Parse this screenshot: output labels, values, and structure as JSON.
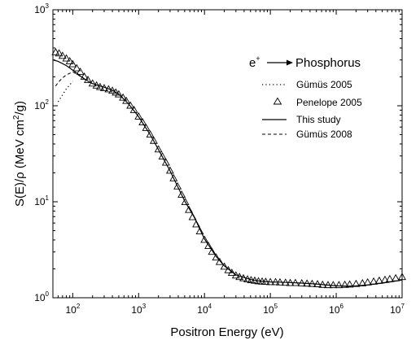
{
  "chart_data": {
    "type": "line",
    "xlabel": "Positron Energy (eV)",
    "ylabel_parts": {
      "pre": "S(E)/",
      "rho": "ρ",
      "mid": " (MeV cm",
      "sup": "2",
      "post": "/g)"
    },
    "x_scale": "log",
    "y_scale": "log",
    "xlim": [
      50,
      10000000
    ],
    "ylim": [
      1,
      1000
    ],
    "x_tick_labels": [
      {
        "value": 100,
        "base": "10",
        "exp": "2"
      },
      {
        "value": 1000,
        "base": "10",
        "exp": "3"
      },
      {
        "value": 10000,
        "base": "10",
        "exp": "4"
      },
      {
        "value": 100000,
        "base": "10",
        "exp": "5"
      },
      {
        "value": 1000000,
        "base": "10",
        "exp": "6"
      },
      {
        "value": 10000000,
        "base": "10",
        "exp": "7"
      }
    ],
    "y_tick_labels": [
      {
        "value": 1,
        "base": "10",
        "exp": "0"
      },
      {
        "value": 10,
        "base": "10",
        "exp": "1"
      },
      {
        "value": 100,
        "base": "10",
        "exp": "2"
      },
      {
        "value": 1000,
        "base": "10",
        "exp": "3"
      }
    ],
    "annotation": {
      "lhs": "e",
      "lhs_sup": "+",
      "rhs": "Phosphorus"
    },
    "legend_placement": "right",
    "grid": false,
    "series": [
      {
        "name": "Gümüs 2005",
        "style": "dotted",
        "x": [
          60,
          70,
          80,
          100
        ],
        "y": [
          110,
          130,
          150,
          180
        ]
      },
      {
        "name": "Penelope 2005",
        "style": "triangle-markers",
        "x": [
          55,
          62,
          70,
          80,
          90,
          100,
          115,
          130,
          150,
          170,
          200,
          230,
          260,
          300,
          350,
          400,
          450,
          500,
          580,
          650,
          750,
          850,
          1000,
          1150,
          1300,
          1500,
          1700,
          2000,
          2300,
          2600,
          3000,
          3400,
          3900,
          4500,
          5100,
          5800,
          6600,
          7500,
          8500,
          10000,
          11500,
          13000,
          15000,
          17000,
          20000,
          23000,
          26000,
          30000,
          34000,
          39000,
          45000,
          51000,
          58000,
          66000,
          75000,
          85000,
          100000,
          120000,
          140000,
          170000,
          200000,
          240000,
          300000,
          360000,
          430000,
          520000,
          620000,
          750000,
          900000,
          1100000,
          1350000,
          1600000,
          2000000,
          2500000,
          3000000,
          3700000,
          4500000,
          5500000,
          6500000,
          8000000,
          10000000
        ],
        "y": [
          360,
          350,
          330,
          310,
          290,
          270,
          245,
          225,
          200,
          185,
          170,
          162,
          156,
          152,
          148,
          143,
          137,
          131,
          121,
          112,
          100,
          90,
          77,
          67,
          58.5,
          50,
          43,
          35,
          29.5,
          25.5,
          21,
          17.5,
          14.4,
          11.8,
          9.9,
          8.2,
          6.9,
          5.8,
          4.9,
          4.0,
          3.45,
          3.0,
          2.62,
          2.35,
          2.1,
          1.93,
          1.81,
          1.7,
          1.64,
          1.59,
          1.55,
          1.52,
          1.5,
          1.48,
          1.47,
          1.46,
          1.45,
          1.45,
          1.44,
          1.43,
          1.42,
          1.42,
          1.41,
          1.4,
          1.39,
          1.38,
          1.36,
          1.35,
          1.35,
          1.35,
          1.36,
          1.37,
          1.39,
          1.41,
          1.44,
          1.47,
          1.5,
          1.53,
          1.56,
          1.59,
          1.64
        ]
      },
      {
        "name": "This study",
        "style": "solid",
        "x": [
          50,
          60,
          70,
          80,
          100,
          130,
          160,
          200,
          250,
          300,
          400,
          500,
          700,
          1000,
          1500,
          2000,
          3000,
          5000,
          7000,
          10000,
          15000,
          20000,
          30000,
          50000,
          70000,
          100000,
          150000,
          200000,
          300000,
          500000,
          700000,
          1000000,
          1500000,
          2000000,
          3000000,
          5000000,
          7000000,
          10000000
        ],
        "y": [
          300,
          290,
          275,
          262,
          235,
          205,
          185,
          170,
          162,
          156,
          145,
          132,
          105,
          77,
          50,
          35,
          21,
          10.2,
          6.9,
          4.1,
          2.7,
          2.15,
          1.73,
          1.55,
          1.49,
          1.46,
          1.45,
          1.44,
          1.42,
          1.39,
          1.36,
          1.33,
          1.32,
          1.33,
          1.36,
          1.42,
          1.47,
          1.53
        ]
      },
      {
        "name": "Gümüs 2008",
        "style": "dashed",
        "x": [
          55,
          60,
          70,
          80,
          100,
          120,
          150
        ],
        "y": [
          160,
          175,
          195,
          210,
          225,
          210,
          190
        ]
      }
    ]
  }
}
